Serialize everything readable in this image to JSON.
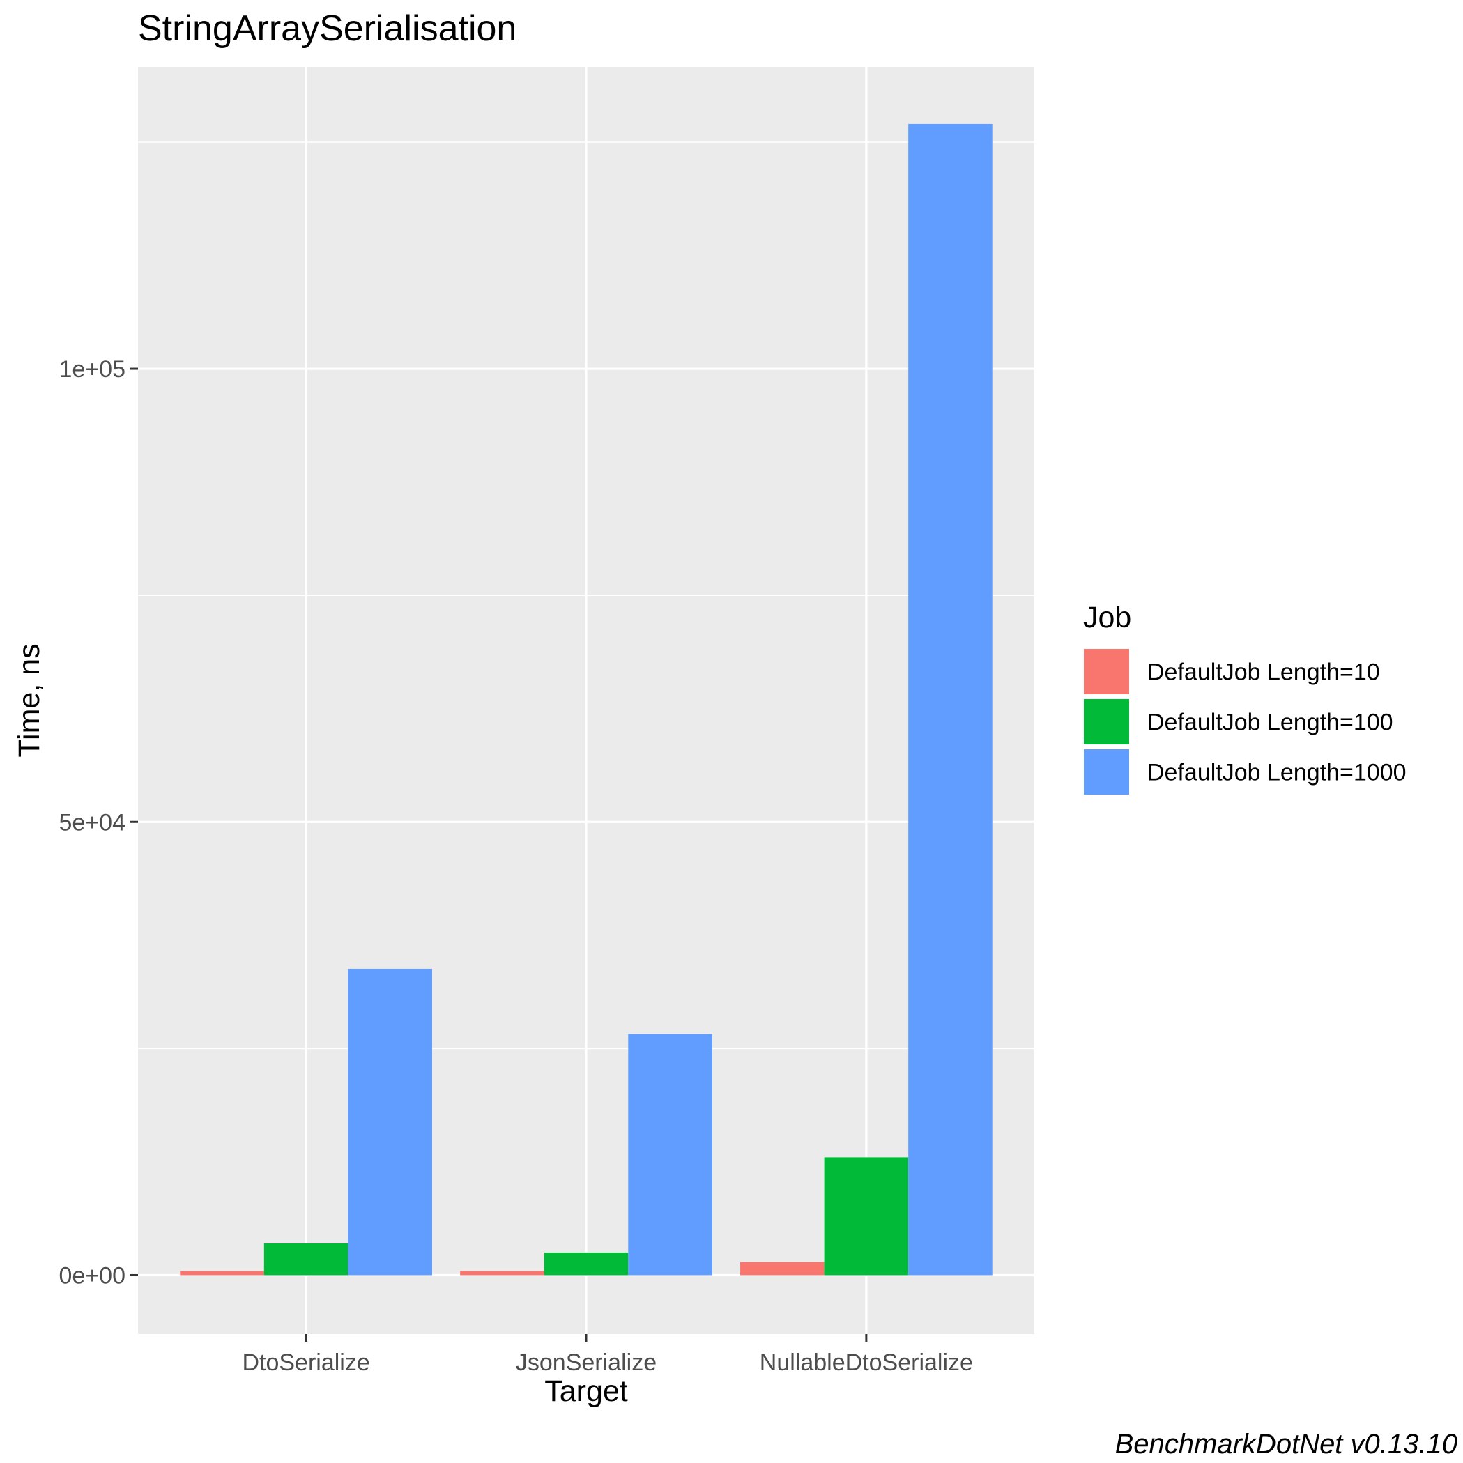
{
  "chart_data": {
    "type": "bar",
    "title": "StringArraySerialisation",
    "xlabel": "Target",
    "ylabel": "Time, ns",
    "categories": [
      "DtoSerialize",
      "JsonSerialize",
      "NullableDtoSerialize"
    ],
    "series": [
      {
        "name": "DefaultJob Length=10",
        "color": "#F8766D",
        "values": [
          450,
          450,
          1450
        ]
      },
      {
        "name": "DefaultJob Length=100",
        "color": "#00BA38",
        "values": [
          3500,
          2500,
          13000
        ]
      },
      {
        "name": "DefaultJob Length=1000",
        "color": "#619CFF",
        "values": [
          33800,
          26600,
          127000
        ]
      }
    ],
    "ylim": [
      -6500,
      133300
    ],
    "y_ticks": [
      {
        "value": 0,
        "label": "0e+00"
      },
      {
        "value": 50000,
        "label": "5e+04"
      },
      {
        "value": 100000,
        "label": "1e+05"
      }
    ],
    "y_minor_ticks": [
      25000,
      75000,
      125000
    ],
    "grid": true,
    "panel_color": "#EBEBEB",
    "legend": {
      "title": "Job",
      "position": "right"
    },
    "caption": "BenchmarkDotNet v0.13.10"
  }
}
